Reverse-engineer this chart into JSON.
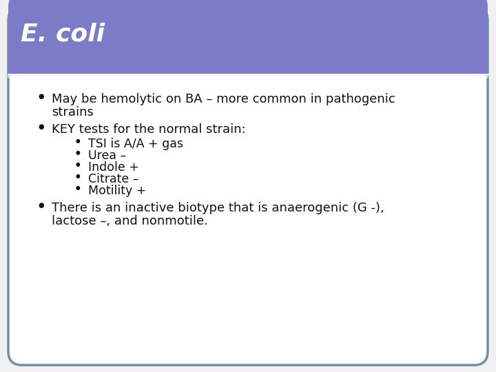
{
  "title": "E. coli",
  "title_color": "#FFFFFF",
  "title_bg_color": "#7B7BC8",
  "title_font_size": 26,
  "slide_bg_color": "#FFFFFF",
  "outer_bg_color": "#F0F0F0",
  "border_color": "#7090A0",
  "bullet_color": "#111111",
  "bullet_font_size": 13.0,
  "sub_bullet_font_size": 12.5,
  "sub_bullets": [
    "TSI is A/A + gas",
    "Urea –",
    "Indole +",
    "Citrate –",
    "Motility +"
  ]
}
